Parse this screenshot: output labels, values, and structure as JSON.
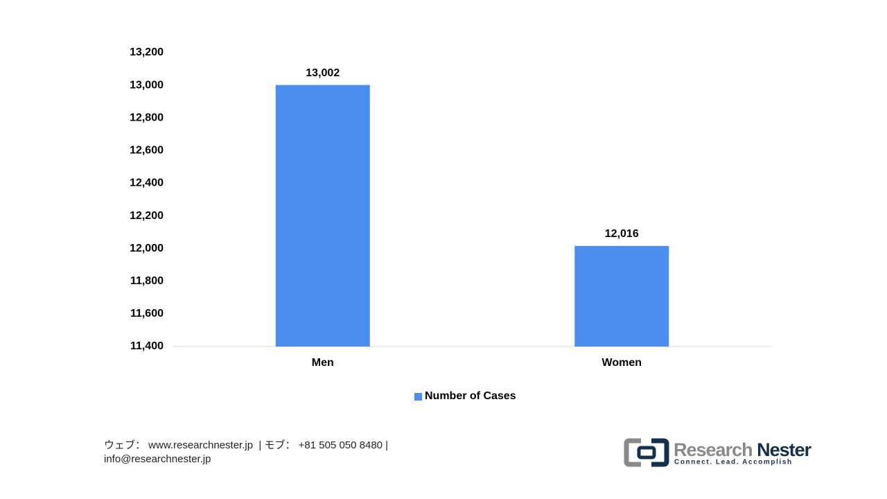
{
  "chart_data": {
    "type": "bar",
    "categories": [
      "Men",
      "Women"
    ],
    "series": [
      {
        "name": "Number of Cases",
        "color": "#4a8ef0",
        "values": [
          13002,
          12016
        ],
        "value_labels": [
          "13,002",
          "12,016"
        ]
      }
    ],
    "ylim": [
      11400,
      13200
    ],
    "yticks": [
      {
        "value": 11400,
        "label": "11,400"
      },
      {
        "value": 11600,
        "label": "11,600"
      },
      {
        "value": 11800,
        "label": "11,800"
      },
      {
        "value": 12000,
        "label": "12,000"
      },
      {
        "value": 12200,
        "label": "12,200"
      },
      {
        "value": 12400,
        "label": "12,400"
      },
      {
        "value": 12600,
        "label": "12,600"
      },
      {
        "value": 12800,
        "label": "12,800"
      },
      {
        "value": 13000,
        "label": "13,000"
      },
      {
        "value": 13200,
        "label": "13,200"
      }
    ],
    "grid": false,
    "legend": "bottom"
  },
  "footer": {
    "line1": "ウェブ： www.researchnester.jp  | モブ： +81 505 050 8480 |",
    "line2": "info@researchnester.jp"
  },
  "logo": {
    "name_1": "Research",
    "name_2": "Nester",
    "tagline": "Connect. Lead. Accomplish"
  }
}
